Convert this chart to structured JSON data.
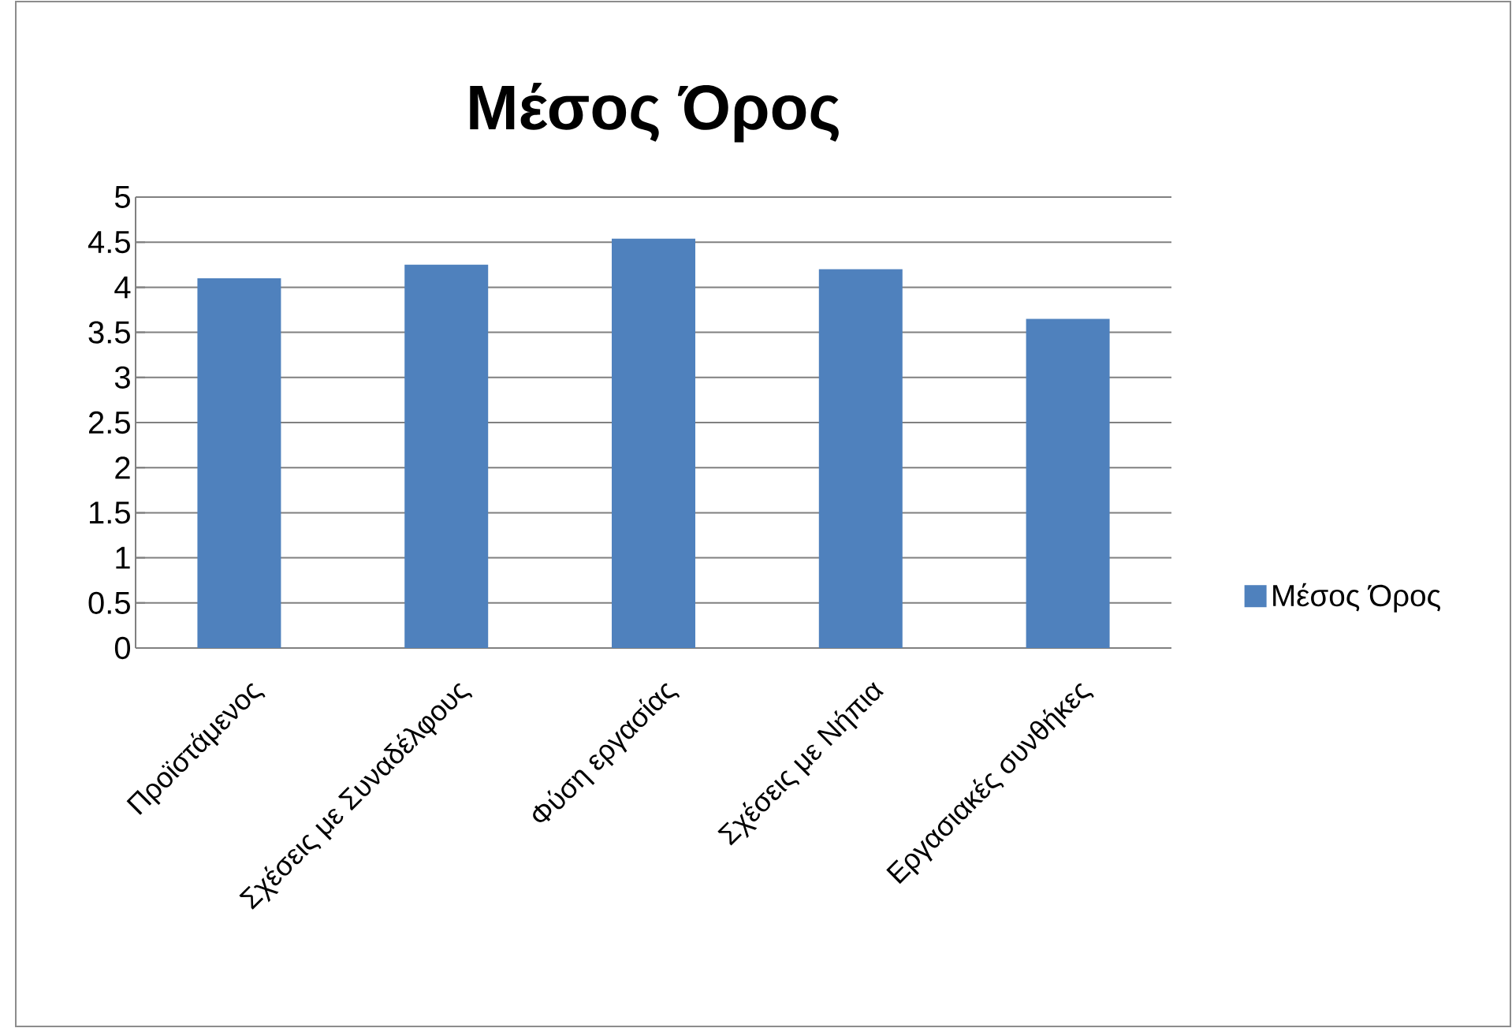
{
  "chart_data": {
    "type": "bar",
    "title": "Μέσος Όρος",
    "categories": [
      "Προϊστάμενος",
      "Σχέσεις με Συναδέλφους",
      "Φύση εργασίας",
      "Σχέσεις με Νήπια",
      "Εργασιακές συνθήκες"
    ],
    "series": [
      {
        "name": "Μέσος Όρος",
        "color": "#4f81bd",
        "values": [
          4.1,
          4.25,
          4.54,
          4.2,
          3.65
        ]
      }
    ],
    "ylim": [
      0,
      5
    ],
    "yticks": [
      0,
      0.5,
      1,
      1.5,
      2,
      2.5,
      3,
      3.5,
      4,
      4.5,
      5
    ],
    "grid": "y",
    "legend": "right"
  }
}
